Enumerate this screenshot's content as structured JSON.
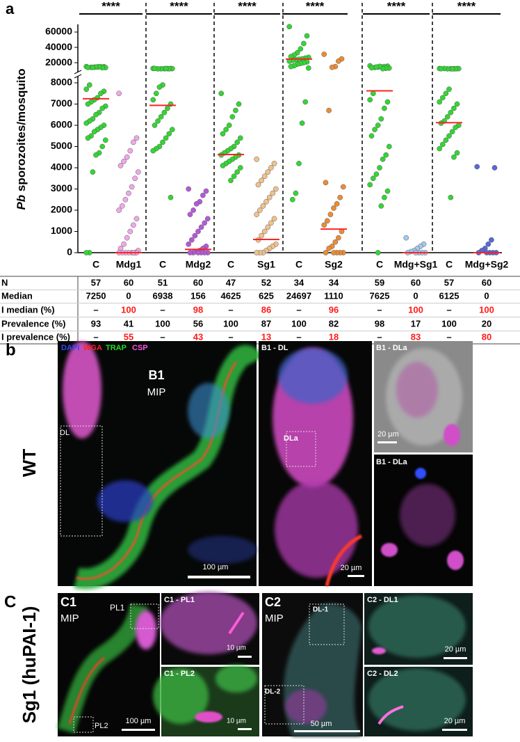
{
  "chart_data": {
    "type": "dot",
    "panel_label": "a",
    "y_label_italic": "Pb",
    "y_label": "sporozoites/mosquito",
    "categories": [
      "C",
      "Mdg1",
      "C",
      "Mdg2",
      "C",
      "Sg1",
      "C",
      "Sg2",
      "C",
      "Mdg+Sg1",
      "C",
      "Mdg+Sg2"
    ],
    "ylim": [
      0,
      8000
    ],
    "yticks": [
      0,
      1000,
      2000,
      3000,
      4000,
      5000,
      6000,
      7000,
      8000
    ],
    "upper_ylim": [
      11000,
      70000
    ],
    "upper_yticks": [
      20000,
      40000,
      60000
    ],
    "median_color": "#ff2222",
    "significance": [
      "****",
      "****",
      "****",
      "****",
      "****",
      "****"
    ],
    "groups": [
      {
        "color": "#33d633",
        "median": 7250,
        "points": [
          15000,
          14800,
          14600,
          14400,
          14200,
          14000,
          13800,
          13600,
          13500,
          14900,
          14300,
          13900,
          7900,
          7700,
          7600,
          7500,
          7300,
          7200,
          7100,
          7000,
          6900,
          6800,
          6600,
          6500,
          6300,
          6200,
          6100,
          6000,
          5900,
          5800,
          5700,
          5500,
          5400,
          5300,
          5000,
          4700,
          4600,
          3800,
          0,
          0
        ]
      },
      {
        "color": "#f0a8e8",
        "median": 0,
        "points": [
          7500,
          5400,
          5200,
          4800,
          4500,
          4300,
          4100,
          3800,
          3500,
          3100,
          2800,
          2500,
          2200,
          2000,
          1600,
          1300,
          1000,
          700,
          400,
          200,
          100,
          0,
          0,
          0,
          0,
          0,
          0,
          0,
          0
        ]
      },
      {
        "color": "#33d633",
        "median": 6938,
        "points": [
          12500,
          12400,
          12300,
          12200,
          12100,
          12000,
          12500,
          12300,
          12100,
          12400,
          7900,
          7800,
          7500,
          7200,
          7000,
          6800,
          6600,
          6400,
          6200,
          6000,
          5800,
          5600,
          5400,
          5200,
          5000,
          4900,
          4800,
          2600
        ]
      },
      {
        "color": "#b45ad8",
        "median": 156,
        "points": [
          3000,
          2900,
          2700,
          2400,
          2300,
          2000,
          1800,
          1600,
          1400,
          1200,
          1000,
          800,
          600,
          400,
          300,
          200,
          100,
          50,
          0,
          0,
          0,
          0,
          0,
          0
        ]
      },
      {
        "color": "#33d633",
        "median": 4625,
        "points": [
          7500,
          7000,
          6700,
          6400,
          6000,
          5800,
          5600,
          5400,
          5200,
          5000,
          4900,
          4800,
          4700,
          4600,
          4600,
          4500,
          4400,
          4300,
          4200,
          4100,
          4000,
          3800,
          3600,
          3400
        ]
      },
      {
        "color": "#f0c28c",
        "median": 625,
        "points": [
          4400,
          4200,
          4000,
          3800,
          3600,
          3400,
          3200,
          3000,
          2800,
          2600,
          2400,
          2200,
          2000,
          1800,
          1600,
          1400,
          1200,
          1000,
          800,
          600,
          400,
          300,
          200,
          100,
          0,
          0,
          0
        ]
      },
      {
        "color": "#33d633",
        "median": 24697,
        "points": [
          67000,
          55000,
          45000,
          38000,
          33000,
          30000,
          28000,
          27000,
          26000,
          25000,
          24500,
          24000,
          23000,
          22000,
          21000,
          20000,
          19000,
          18000,
          16000,
          15000,
          13000,
          7100,
          6100,
          4200,
          2800,
          2500
        ]
      },
      {
        "color": "#ec8c34",
        "median": 1110,
        "points": [
          31000,
          25000,
          22000,
          15000,
          14000,
          6700,
          3300,
          3100,
          2600,
          2300,
          2100,
          1800,
          1500,
          1300,
          1000,
          700,
          500,
          300,
          200,
          0,
          0,
          0,
          0,
          0
        ]
      },
      {
        "color": "#33d633",
        "median": 7625,
        "points": [
          16000,
          15500,
          15000,
          14600,
          14200,
          13800,
          13400,
          13000,
          12600,
          12200,
          15200,
          14400,
          7500,
          7200,
          7100,
          6800,
          6300,
          6000,
          5800,
          5500,
          5000,
          4600,
          4400,
          4000,
          3700,
          3500,
          3200,
          2900,
          2600,
          2200,
          0
        ]
      },
      {
        "color": "#a6c8f0",
        "median": 0,
        "points": [
          700,
          400,
          300,
          200,
          100,
          50,
          0,
          0,
          0,
          0,
          0
        ]
      },
      {
        "color": "#33d633",
        "median": 6125,
        "points": [
          12400,
          12300,
          12200,
          12100,
          12000,
          12400,
          12200,
          12300,
          12100,
          12000,
          7700,
          7500,
          7300,
          7100,
          7000,
          6800,
          6600,
          6400,
          6200,
          6100,
          6000,
          5900,
          5700,
          5500,
          5300,
          5100,
          4900,
          4700,
          4500,
          2600
        ]
      },
      {
        "color": "#5868d8",
        "median": 0,
        "points": [
          4050,
          4000,
          600,
          400,
          200,
          100,
          0,
          0,
          0,
          0,
          0
        ]
      }
    ]
  },
  "table": {
    "row_labels": [
      "N",
      "Median",
      "I median (%)",
      "Prevalence (%)",
      "I prevalence (%)"
    ],
    "highlight_rows": [
      2,
      4
    ],
    "highlight_color": "#ff1a1a",
    "rows": [
      [
        57,
        60,
        51,
        60,
        47,
        52,
        34,
        34,
        59,
        60,
        57,
        60
      ],
      [
        7250,
        0,
        6938,
        156,
        4625,
        625,
        24697,
        1110,
        7625,
        0,
        6125,
        0
      ],
      [
        "–",
        100,
        "–",
        98,
        "–",
        86,
        "–",
        96,
        "–",
        100,
        "–",
        100
      ],
      [
        93,
        41,
        100,
        56,
        100,
        87,
        100,
        82,
        98,
        17,
        100,
        20
      ],
      [
        "–",
        55,
        "–",
        43,
        "–",
        13,
        "–",
        18,
        "–",
        83,
        "–",
        80
      ]
    ]
  },
  "panel_labels": [
    "b",
    "C"
  ],
  "row_titles": [
    "WT",
    "Sg1 (huPAI-1)"
  ],
  "stains": [
    {
      "name": "DAPI",
      "color": "#3344ff"
    },
    {
      "name": "WGA",
      "color": "#ff2020"
    },
    {
      "name": "TRAP",
      "color": "#22dd22"
    },
    {
      "name": "CSP",
      "color": "#ff55dd"
    }
  ],
  "images": [
    {
      "label": "B1",
      "view": "MIP",
      "roi": [
        "DL"
      ],
      "scale": "100 µm"
    },
    {
      "label": "B1 - DL",
      "roi": [
        "DLa"
      ],
      "scale": "20 µm"
    },
    {
      "label": "B1 - DLa",
      "scale": "20 µm"
    },
    {
      "label": "B1 - DLa"
    },
    {
      "label": "C1",
      "view": "MIP",
      "roi": [
        "PL1",
        "PL2"
      ],
      "scale": "100 µm"
    },
    {
      "label": "C1 - PL1",
      "scale": "10 µm"
    },
    {
      "label": "C1 - PL2",
      "scale": "10 µm"
    },
    {
      "label": "C2",
      "view": "MIP",
      "roi": [
        "DL-1",
        "DL-2"
      ],
      "scale": "50 µm"
    },
    {
      "label": "C2 - DL1",
      "scale": "20 µm"
    },
    {
      "label": "C2 - DL2",
      "scale": "20 µm"
    }
  ]
}
